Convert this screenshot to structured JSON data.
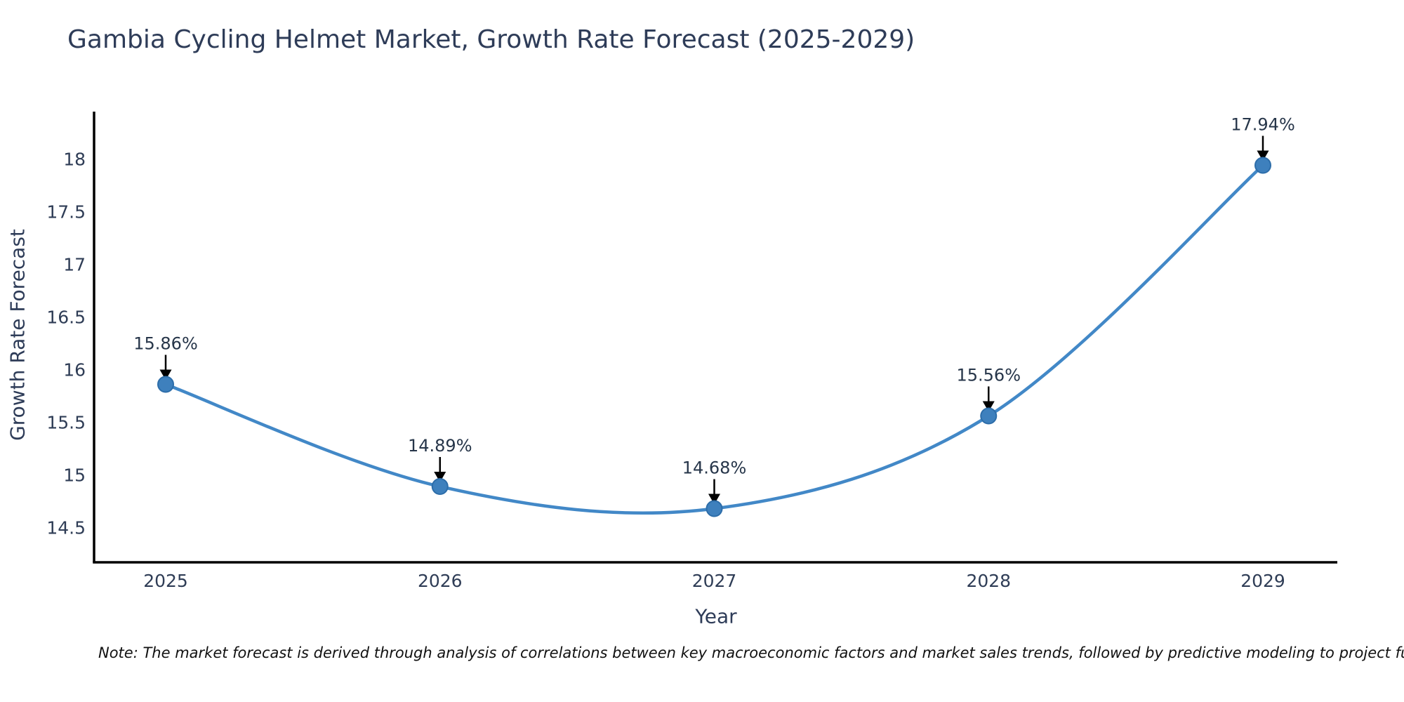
{
  "chart": {
    "title": "Gambia Cycling Helmet Market, Growth Rate Forecast (2025-2029)",
    "xlabel": "Year",
    "ylabel": "Growth Rate Forecast",
    "note": "Note: The market forecast is derived through analysis of correlations between key macroeconomic factors and market sales trends, followed by predictive modeling to project future sal"
  },
  "chart_data": {
    "type": "line",
    "title": "Gambia Cycling Helmet Market, Growth Rate Forecast (2025-2029)",
    "xlabel": "Year",
    "ylabel": "Growth Rate Forecast",
    "x": [
      2025,
      2026,
      2027,
      2028,
      2029
    ],
    "series": [
      {
        "name": "Growth Rate Forecast",
        "values": [
          15.86,
          14.89,
          14.68,
          15.56,
          17.94
        ],
        "point_labels": [
          "15.86%",
          "14.89%",
          "14.68%",
          "15.56%",
          "17.94%"
        ]
      }
    ],
    "yticks": [
      14.5,
      15,
      15.5,
      16,
      16.5,
      17,
      17.5,
      18
    ],
    "ylim": [
      14.17,
      18.45
    ],
    "grid": false,
    "legend_position": "none",
    "line_style": "smooth-spline",
    "marker": "circle",
    "annotations": "value-labels-with-down-arrows",
    "colors": {
      "line": "#4288c7",
      "marker_fill": "#3e80bd",
      "marker_edge": "#2d6da9",
      "axis": "#000000",
      "tick_text": "#2f3d56",
      "label_text": "#263549",
      "title_text": "#2e3c58",
      "note_text": "#111111",
      "background": "#ffffff",
      "annotation_arrow": "#000000"
    }
  }
}
